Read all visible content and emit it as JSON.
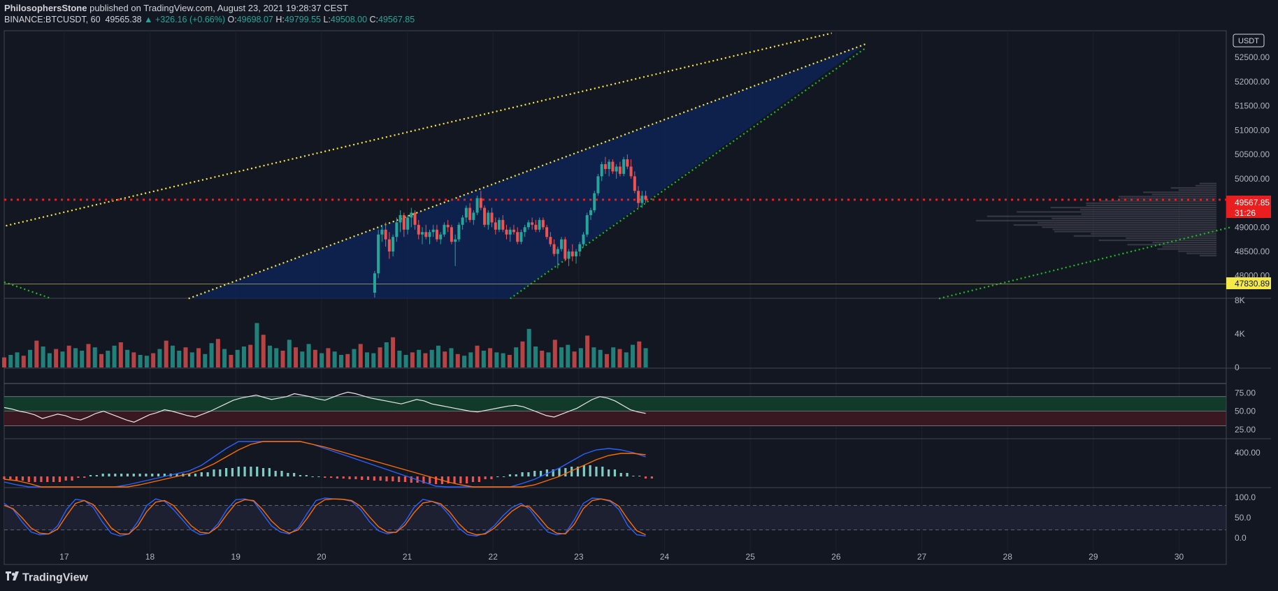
{
  "header": {
    "author": "PhilosophersStone",
    "published": "published on TradingView.com, August 23, 2021 19:28:37 CEST",
    "symbol": "BINANCE:BTCUSDT, 60",
    "last": "49565.38",
    "change": "▲ +326.16 (+0.66%)",
    "o_label": "O:",
    "o": "49698.07",
    "h_label": "H:",
    "h": "49799.55",
    "l_label": "L:",
    "l": "49508.00",
    "c_label": "C:",
    "c": "49567.85"
  },
  "currency": "USDT",
  "footer": {
    "brand": "TradingView"
  },
  "colors": {
    "background": "#131722",
    "up": "#26a69a",
    "down": "#ef5350",
    "wedge_fill": "#0e2354",
    "yellow": "#ffeb3b",
    "green": "#19c21b",
    "price_line": "#e91e1e",
    "rsi_band_top": "#123a2a",
    "rsi_band_bottom": "#3a1822",
    "macd_line": "#2962ff",
    "signal_line": "#ff6d00"
  },
  "chart_data": [
    {
      "type": "candlestick",
      "panel": "price",
      "x_axis_dates": [
        "17",
        "18",
        "19",
        "20",
        "21",
        "22",
        "23",
        "24",
        "25",
        "26",
        "27",
        "28",
        "29",
        "30"
      ],
      "x_range_days": [
        16.3,
        30.55
      ],
      "ylim": [
        47550,
        53050
      ],
      "y_ticks": [
        "52500.00",
        "52000.00",
        "51500.00",
        "51000.00",
        "50500.00",
        "50000.00",
        "49000.00",
        "48500.00",
        "48000.00"
      ],
      "y_tick_cut_top": "5",
      "last_price_label": "49567.85",
      "countdown": "31:26",
      "level_label": "47830.89",
      "price_line_value": 49567.85,
      "level_line_value": 47830.89,
      "candles_ohlc_sample_from_day_20_6": [
        [
          47650,
          48100,
          47550,
          48050
        ],
        [
          48050,
          48950,
          47950,
          48850
        ],
        [
          48850,
          49050,
          48700,
          48950
        ],
        [
          48950,
          49100,
          48600,
          48750
        ],
        [
          48750,
          48900,
          48350,
          48500
        ],
        [
          48500,
          48850,
          48400,
          48800
        ],
        [
          48800,
          49200,
          48700,
          49100
        ],
        [
          49100,
          49350,
          48900,
          49250
        ],
        [
          49250,
          49300,
          48800,
          48950
        ],
        [
          48950,
          49250,
          48850,
          49200
        ],
        [
          49200,
          49400,
          49000,
          49300
        ],
        [
          49300,
          49350,
          48950,
          49050
        ],
        [
          49050,
          49150,
          48750,
          48850
        ],
        [
          48850,
          49000,
          48650,
          48900
        ],
        [
          48900,
          49050,
          48750,
          48800
        ],
        [
          48800,
          48950,
          48650,
          48900
        ],
        [
          48900,
          49050,
          48800,
          48950
        ],
        [
          48950,
          49050,
          48700,
          48750
        ],
        [
          48750,
          48900,
          48650,
          48850
        ],
        [
          48850,
          49100,
          48800,
          49050
        ],
        [
          49050,
          49150,
          48900,
          49000
        ],
        [
          49000,
          49050,
          48650,
          48700
        ],
        [
          48700,
          48850,
          48200,
          48750
        ],
        [
          48750,
          49100,
          48700,
          49050
        ],
        [
          49050,
          49250,
          48950,
          49200
        ],
        [
          49200,
          49450,
          49100,
          49400
        ],
        [
          49400,
          49500,
          49100,
          49150
        ],
        [
          49150,
          49350,
          49050,
          49300
        ],
        [
          49300,
          49650,
          49250,
          49600
        ],
        [
          49600,
          49750,
          49350,
          49400
        ],
        [
          49400,
          49450,
          49000,
          49050
        ],
        [
          49050,
          49350,
          48950,
          49300
        ],
        [
          49300,
          49400,
          49000,
          49100
        ],
        [
          49100,
          49200,
          48850,
          48950
        ],
        [
          48950,
          49200,
          48900,
          49150
        ],
        [
          49150,
          49250,
          48900,
          48950
        ],
        [
          48950,
          49050,
          48750,
          48850
        ],
        [
          48850,
          49000,
          48700,
          48950
        ],
        [
          48950,
          49050,
          48850,
          48900
        ],
        [
          48900,
          49000,
          48650,
          48700
        ],
        [
          48700,
          48950,
          48650,
          48900
        ],
        [
          48900,
          49050,
          48800,
          49000
        ],
        [
          49000,
          49150,
          48950,
          49100
        ],
        [
          49100,
          49200,
          48950,
          49050
        ],
        [
          49050,
          49150,
          48900,
          48950
        ],
        [
          48950,
          49200,
          48900,
          49150
        ],
        [
          49150,
          49200,
          48950,
          49000
        ],
        [
          49000,
          49050,
          48750,
          48800
        ],
        [
          48800,
          48900,
          48600,
          48650
        ],
        [
          48650,
          48750,
          48400,
          48450
        ],
        [
          48450,
          48600,
          48150,
          48550
        ],
        [
          48550,
          48800,
          48500,
          48750
        ],
        [
          48750,
          48800,
          48300,
          48350
        ],
        [
          48350,
          48550,
          48200,
          48500
        ],
        [
          48500,
          48650,
          48300,
          48400
        ],
        [
          48400,
          48550,
          48250,
          48500
        ],
        [
          48500,
          48700,
          48400,
          48650
        ],
        [
          48650,
          48900,
          48600,
          48850
        ],
        [
          48850,
          49300,
          48800,
          49250
        ],
        [
          49250,
          49400,
          49150,
          49350
        ],
        [
          49350,
          49750,
          49300,
          49700
        ],
        [
          49700,
          50100,
          49650,
          50050
        ],
        [
          50050,
          50350,
          49950,
          50300
        ],
        [
          50300,
          50450,
          50100,
          50200
        ],
        [
          50200,
          50400,
          50050,
          50350
        ],
        [
          50350,
          50400,
          50100,
          50150
        ],
        [
          50150,
          50300,
          50000,
          50250
        ],
        [
          50250,
          50350,
          50050,
          50100
        ],
        [
          50100,
          50450,
          50050,
          50400
        ],
        [
          50400,
          50500,
          50200,
          50250
        ],
        [
          50250,
          50400,
          50000,
          50050
        ],
        [
          50050,
          50150,
          49700,
          49750
        ],
        [
          49750,
          49850,
          49400,
          49500
        ],
        [
          49500,
          49750,
          49400,
          49650
        ],
        [
          49650,
          49750,
          49500,
          49568
        ]
      ],
      "wedge_vertices_day_price": [
        [
          18.45,
          47530
        ],
        [
          26.35,
          52780
        ],
        [
          22.2,
          47530
        ]
      ],
      "trendlines_day_price": [
        {
          "color": "yellow",
          "from": [
            16.32,
            49030
          ],
          "to": [
            25.95,
            53000
          ]
        },
        {
          "color": "yellow",
          "from": [
            18.45,
            47530
          ],
          "to": [
            26.35,
            52780
          ]
        },
        {
          "color": "green",
          "from": [
            22.2,
            47530
          ],
          "to": [
            26.35,
            52700
          ]
        },
        {
          "color": "green",
          "from": [
            27.2,
            47530
          ],
          "to": [
            30.6,
            49000
          ]
        },
        {
          "color": "green",
          "from": [
            16.3,
            47870
          ],
          "to": [
            16.85,
            47530
          ]
        }
      ]
    },
    {
      "type": "bar",
      "panel": "volume",
      "y_ticks": [
        "8K",
        "4K",
        "0"
      ],
      "ylim": [
        0,
        8000
      ],
      "values_sample": [
        1200,
        1500,
        1800,
        1400,
        2100,
        3200,
        2500,
        1700,
        2200,
        1900,
        2600,
        2300,
        2000,
        2800,
        2400,
        1600,
        2000,
        2600,
        3000,
        2100,
        1800,
        1500,
        1400,
        1700,
        2200,
        3200,
        2600,
        2000,
        2400,
        1800,
        2300,
        1600,
        2900,
        3400,
        2200,
        1500,
        2100,
        2500,
        2700,
        5300,
        3900,
        2600,
        2300,
        2000,
        3300,
        2400,
        1900,
        2800,
        2100,
        1700,
        2300,
        1900,
        1500,
        1600,
        2200,
        2800,
        1800,
        1700,
        2400,
        3000,
        3600,
        2000,
        1500,
        1800,
        2100,
        1700,
        2100,
        2600,
        1900,
        2300,
        1600,
        1400,
        1800,
        2600,
        2000,
        2300,
        1800,
        1700,
        1500,
        2400,
        3100,
        4600,
        2500,
        2000,
        1800,
        3300,
        2400,
        2700,
        1900,
        2300,
        3800,
        2400,
        2100,
        1600,
        2400,
        2200,
        1800,
        2700,
        3100,
        2300
      ]
    },
    {
      "type": "line",
      "panel": "rsi",
      "y_ticks": [
        "75.00",
        "50.00",
        "25.00"
      ],
      "ylim": [
        20,
        85
      ],
      "bands": [
        30,
        50,
        70
      ],
      "rsi_values_sample": [
        55,
        53,
        50,
        48,
        45,
        40,
        43,
        46,
        44,
        40,
        38,
        42,
        47,
        50,
        46,
        42,
        38,
        35,
        40,
        45,
        48,
        52,
        50,
        47,
        44,
        42,
        46,
        50,
        55,
        60,
        65,
        68,
        70,
        72,
        69,
        66,
        68,
        70,
        74,
        72,
        70,
        67,
        65,
        69,
        73,
        76,
        74,
        71,
        68,
        66,
        64,
        62,
        60,
        63,
        66,
        64,
        60,
        58,
        56,
        54,
        52,
        50,
        49,
        51,
        53,
        55,
        57,
        58,
        56,
        52,
        48,
        44,
        42,
        46,
        50,
        54,
        60,
        66,
        70,
        68,
        64,
        58,
        52,
        49,
        47
      ]
    },
    {
      "type": "line",
      "panel": "macd",
      "y_ticks": [
        "400.00"
      ],
      "series_names": [],
      "macd_values_sample": [
        -40,
        -60,
        -90,
        -120,
        -150,
        -170,
        -160,
        -130,
        -100,
        -80,
        -60,
        -40,
        -20,
        0,
        20,
        40,
        80,
        140,
        200,
        260,
        300,
        320,
        310,
        290,
        260,
        230,
        200,
        170,
        140,
        110,
        80,
        50,
        20,
        -10,
        -40,
        -70,
        -90,
        -110,
        -120,
        -115,
        -100,
        -80,
        -50,
        -20,
        20,
        60,
        110,
        160,
        190,
        200,
        190,
        170,
        140
      ],
      "signal_values_sample": [
        -20,
        -30,
        -50,
        -80,
        -110,
        -140,
        -150,
        -140,
        -120,
        -100,
        -80,
        -60,
        -40,
        -20,
        0,
        20,
        50,
        90,
        140,
        190,
        230,
        260,
        270,
        265,
        250,
        230,
        210,
        185,
        160,
        135,
        110,
        85,
        60,
        35,
        10,
        -15,
        -40,
        -60,
        -80,
        -95,
        -100,
        -95,
        -80,
        -60,
        -30,
        0,
        40,
        80,
        120,
        150,
        165,
        165,
        155
      ]
    },
    {
      "type": "line",
      "panel": "stochastic",
      "y_ticks": [
        "100.0",
        "50.0",
        "0.0"
      ],
      "ylim": [
        -10,
        110
      ],
      "bands": [
        20,
        80
      ],
      "k_values_sample": [
        85,
        70,
        40,
        15,
        8,
        10,
        30,
        70,
        95,
        92,
        75,
        40,
        12,
        5,
        10,
        40,
        80,
        96,
        90,
        70,
        45,
        20,
        8,
        12,
        35,
        70,
        94,
        96,
        90,
        60,
        30,
        15,
        10,
        25,
        60,
        92,
        98,
        96,
        95,
        90,
        70,
        40,
        18,
        10,
        15,
        40,
        75,
        95,
        90,
        80,
        55,
        25,
        8,
        5,
        12,
        30,
        55,
        75,
        85,
        70,
        40,
        15,
        8,
        12,
        45,
        85,
        98,
        96,
        90,
        70,
        30,
        8,
        5
      ],
      "d_values_sample": [
        80,
        72,
        50,
        25,
        12,
        10,
        22,
        55,
        85,
        92,
        82,
        55,
        25,
        10,
        10,
        30,
        65,
        88,
        92,
        80,
        55,
        30,
        14,
        12,
        28,
        58,
        85,
        94,
        92,
        70,
        42,
        22,
        12,
        20,
        48,
        80,
        94,
        96,
        95,
        92,
        78,
        52,
        28,
        14,
        14,
        32,
        62,
        86,
        90,
        84,
        64,
        36,
        15,
        8,
        10,
        24,
        45,
        66,
        80,
        76,
        52,
        26,
        12,
        10,
        34,
        72,
        92,
        96,
        92,
        78,
        46,
        18,
        8
      ]
    }
  ]
}
